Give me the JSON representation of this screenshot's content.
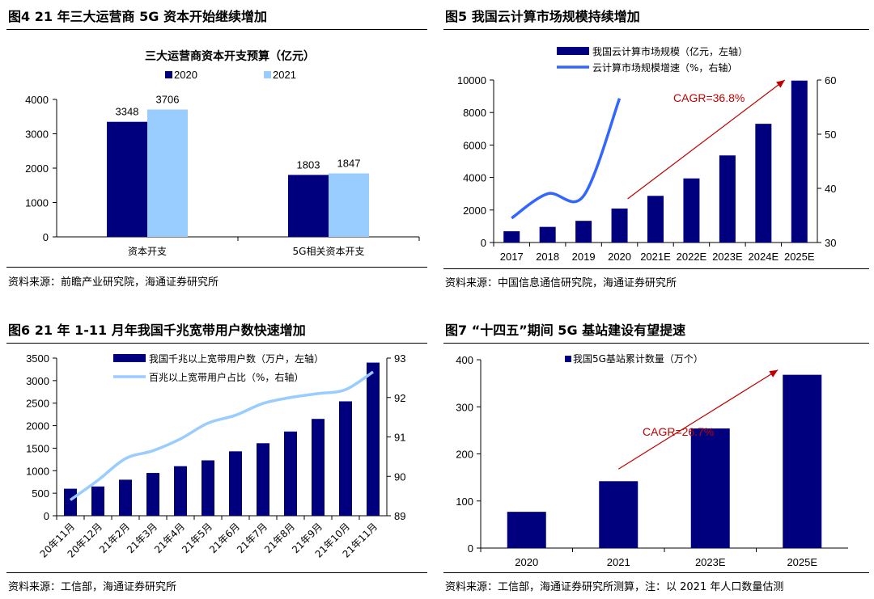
{
  "figures": [
    {
      "title": "图4  21 年三大运营商 5G 资本开始继续增加",
      "source": "资料来源：前瞻产业研究院，海通证券研究所"
    },
    {
      "title": "图5  我国云计算市场规模持续增加",
      "source": "资料来源：中国信息通信研究院，海通证券研究所"
    },
    {
      "title": "图6  21 年 1-11 月年我国千兆宽带用户数快速增加",
      "source": "资料来源：工信部，海通证券研究所"
    },
    {
      "title": "图7  “十四五”期间 5G 基站建设有望提速",
      "source": "资料来源：工信部，海通证券研究所测算，注：以 2021 年人口数量估测"
    }
  ],
  "colors": {
    "navy": "#00007f",
    "light_blue": "#99ccff",
    "bright_blue": "#3366ff",
    "sky_line": "#99ccff",
    "red": "#c00000"
  },
  "chart_data": [
    {
      "type": "bar",
      "title": "三大运营商资本开支预算（亿元）",
      "categories": [
        "资本开支",
        "5G相关资本开支"
      ],
      "series": [
        {
          "name": "2020",
          "values": [
            3348,
            1803
          ],
          "color": "#00007f"
        },
        {
          "name": "2021",
          "values": [
            3706,
            1847
          ],
          "color": "#99ccff"
        }
      ],
      "data_labels": [
        [
          "3348",
          "1803"
        ],
        [
          "3706",
          "1847"
        ]
      ],
      "ylim": [
        0,
        4000
      ],
      "yticks": [
        "0",
        "1000",
        "2000",
        "3000",
        "4000"
      ],
      "legend": "top"
    },
    {
      "type": "bar+line",
      "categories": [
        "2017",
        "2018",
        "2019",
        "2020",
        "2021E",
        "2022E",
        "2023E",
        "2024E",
        "2025E"
      ],
      "bar_series": {
        "name": "我国云计算市场规模（亿元，左轴）",
        "values": [
          692,
          962,
          1334,
          2091,
          2871,
          3945,
          5360,
          7306,
          9965
        ]
      },
      "line_series": {
        "name": "云计算市场规模增速（%，右轴）",
        "values": [
          34.5,
          39.0,
          38.6,
          56.6
        ]
      },
      "ylim_left": [
        0,
        10000
      ],
      "yticks_left": [
        "0",
        "2000",
        "4000",
        "6000",
        "8000",
        "10000"
      ],
      "ylim_right": [
        30,
        60
      ],
      "yticks_right": [
        "30",
        "40",
        "50",
        "60"
      ],
      "annotation": "CAGR=36.8%",
      "legend": "top"
    },
    {
      "type": "bar+line",
      "categories": [
        "20年11月",
        "20年12月",
        "21年2月",
        "21年3月",
        "21年4月",
        "21年5月",
        "21年6月",
        "21年7月",
        "21年8月",
        "21年9月",
        "21年10月",
        "21年11月"
      ],
      "bar_series": {
        "name": "我国千兆以上宽带用户数（万户，左轴）",
        "values": [
          600,
          650,
          800,
          950,
          1100,
          1230,
          1430,
          1610,
          1870,
          2150,
          2540,
          3400
        ]
      },
      "line_series": {
        "name": "百兆以上宽带用户占比（%，右轴）",
        "values": [
          89.4,
          89.9,
          90.45,
          90.65,
          90.95,
          91.35,
          91.55,
          91.85,
          92.0,
          92.1,
          92.2,
          92.65
        ]
      },
      "ylim_left": [
        0,
        3500
      ],
      "yticks_left": [
        "0",
        "500",
        "1000",
        "1500",
        "2000",
        "2500",
        "3000",
        "3500"
      ],
      "ylim_right": [
        89,
        93
      ],
      "yticks_right": [
        "89",
        "90",
        "91",
        "92",
        "93"
      ],
      "legend": "top"
    },
    {
      "type": "bar",
      "categories": [
        "2020",
        "2021",
        "2023E",
        "2025E"
      ],
      "series": [
        {
          "name": "我国5G基站累计数量（万个）",
          "values": [
            77,
            142,
            254,
            368
          ]
        }
      ],
      "ylim": [
        0,
        400
      ],
      "yticks": [
        "0",
        "100",
        "200",
        "300",
        "400"
      ],
      "annotation": "CAGR=26.7%",
      "legend": "top"
    }
  ]
}
